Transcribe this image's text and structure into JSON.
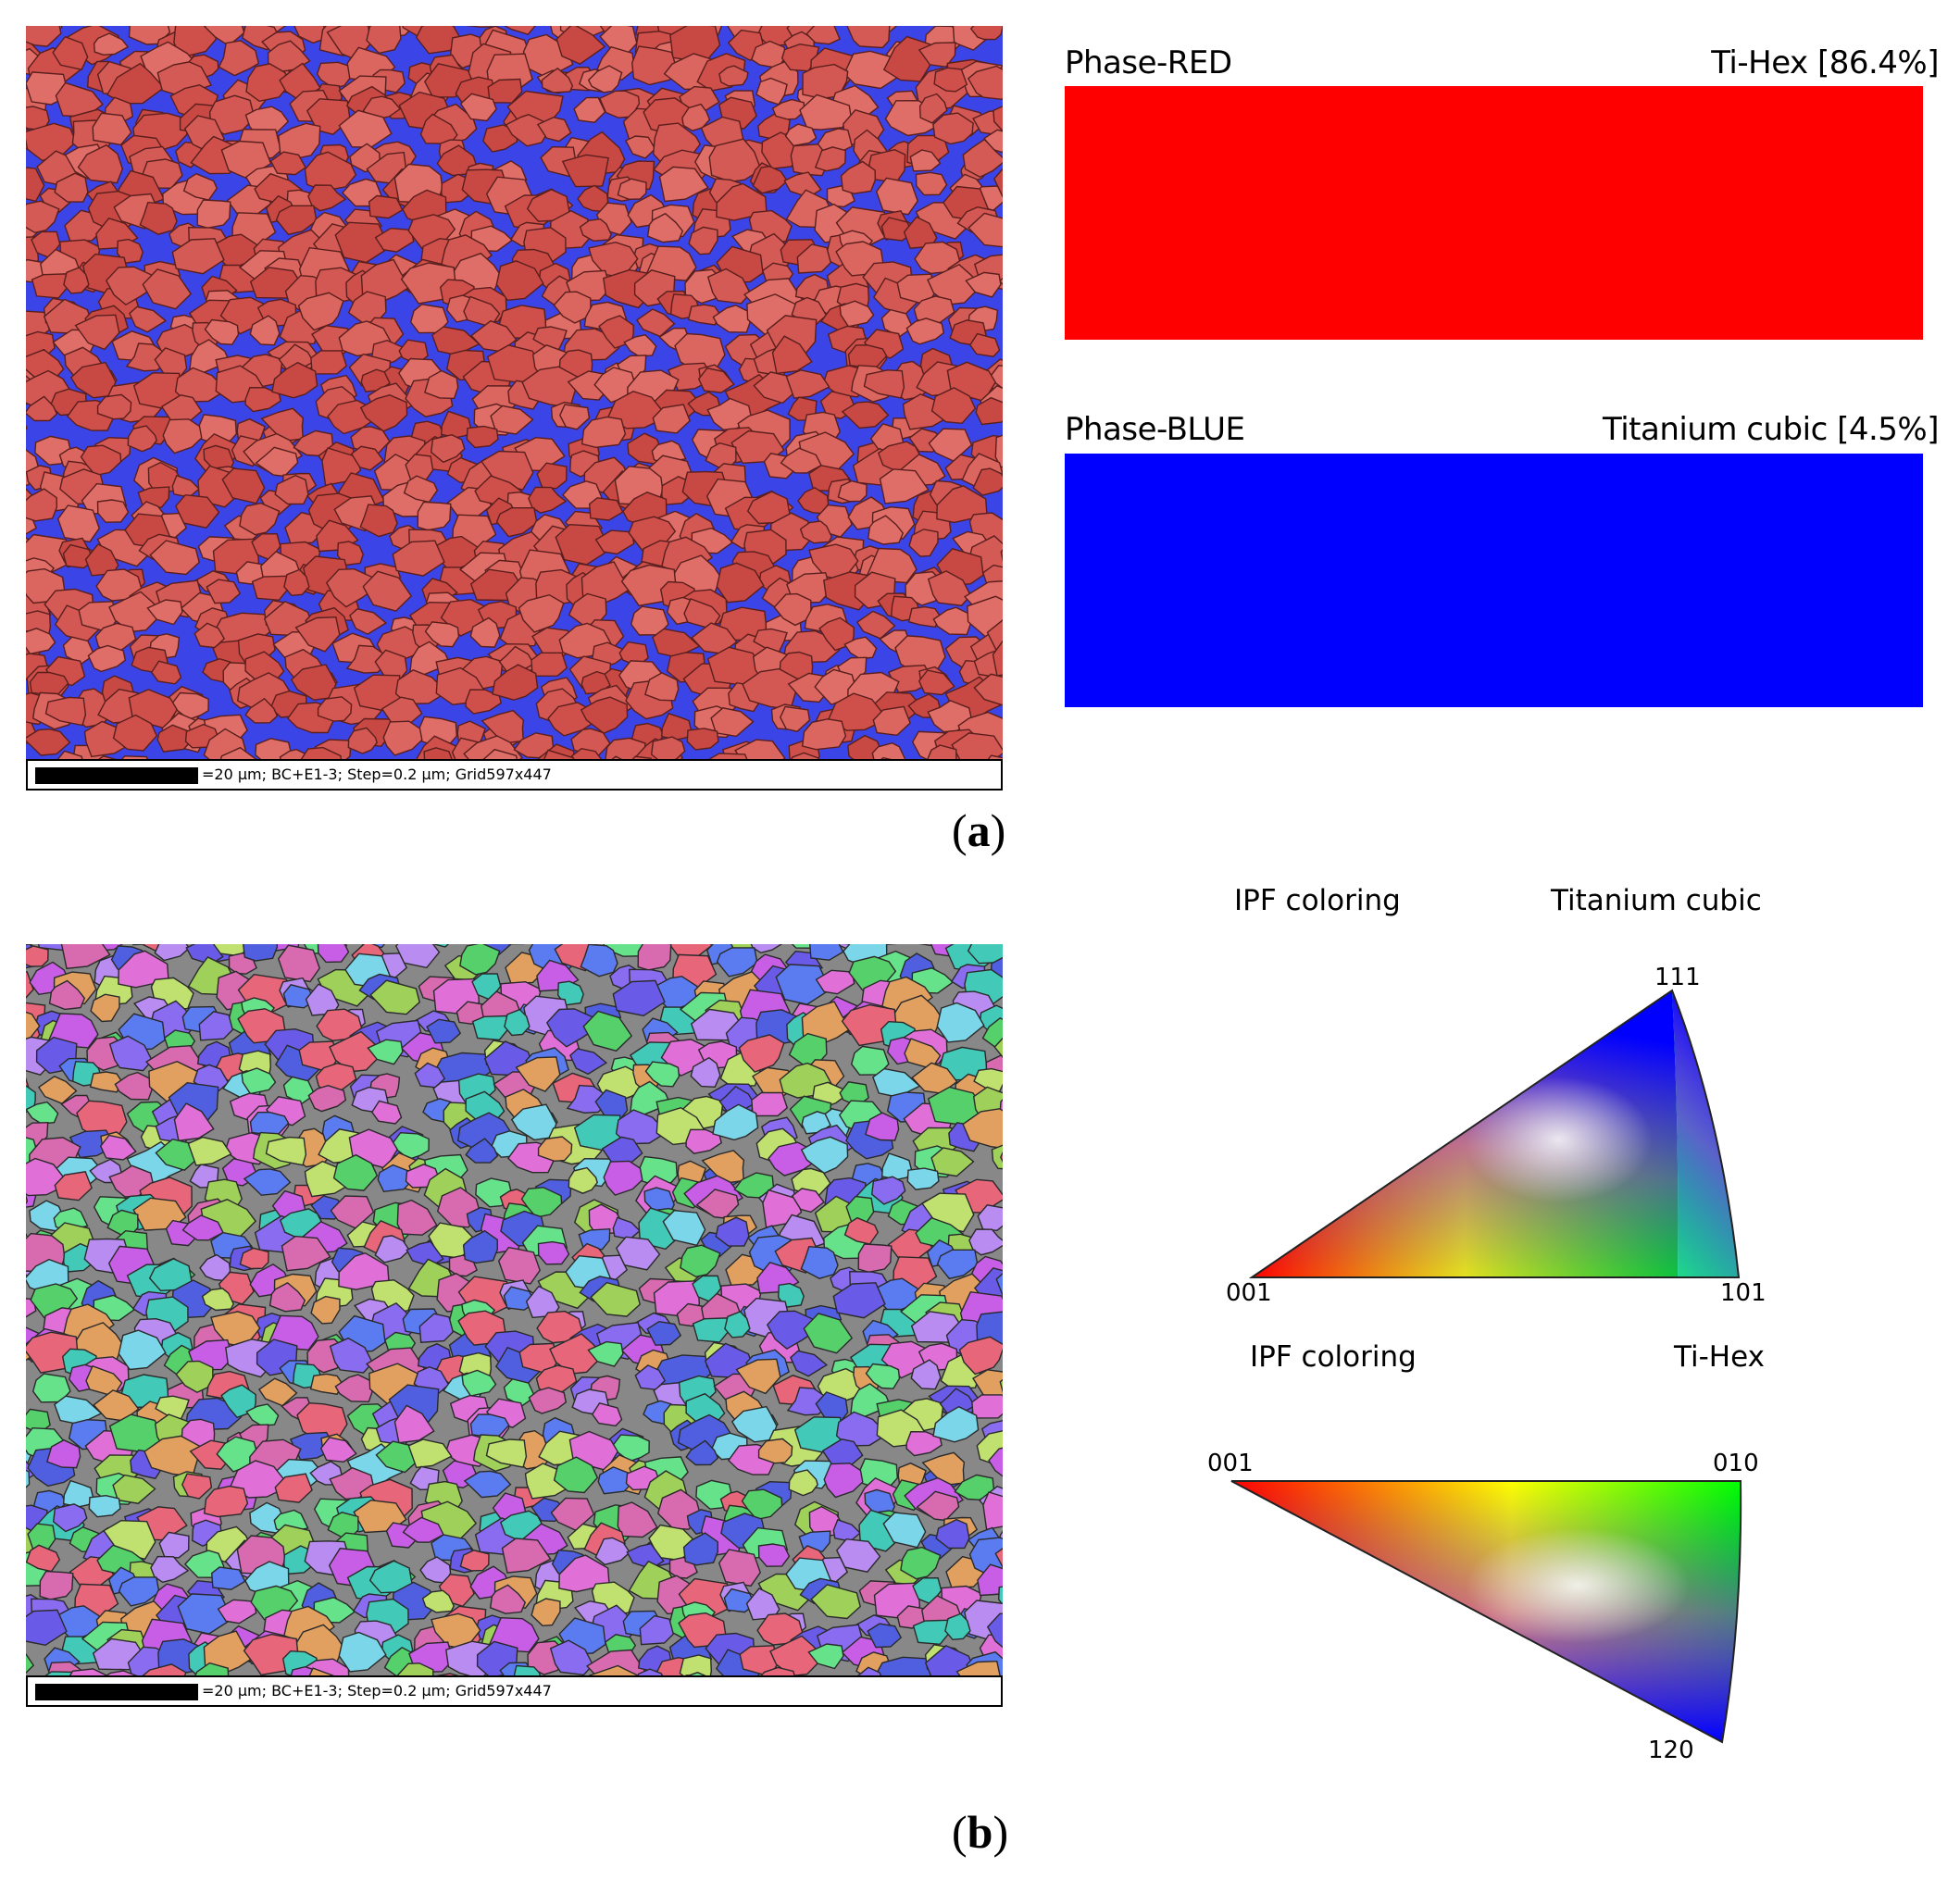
{
  "panel_a": {
    "letter": "a",
    "scalebar_text": "=20 μm; BC+E1-3; Step=0.2 μm; Grid597x447",
    "phases": [
      {
        "name": "Phase-RED",
        "label": "Ti-Hex [86.4%]",
        "color": "#ff0000"
      },
      {
        "name": "Phase-BLUE",
        "label": "Titanium cubic [4.5%]",
        "color": "#0000ff"
      }
    ]
  },
  "panel_b": {
    "letter": "b",
    "scalebar_text": "=20 μm; BC+E1-3; Step=0.2 μm; Grid597x447",
    "ipf_cubic": {
      "heading": "IPF coloring",
      "phase": "Titanium cubic",
      "corners": {
        "top": "111",
        "left": "001",
        "right": "101"
      }
    },
    "ipf_hex": {
      "heading": "IPF coloring",
      "phase": "Ti-Hex",
      "corners": {
        "left": "001",
        "right": "010",
        "bottom": "120"
      }
    }
  },
  "colors": {
    "grain_red": "#d9534f",
    "boundary_blue": "#3b44e6"
  }
}
